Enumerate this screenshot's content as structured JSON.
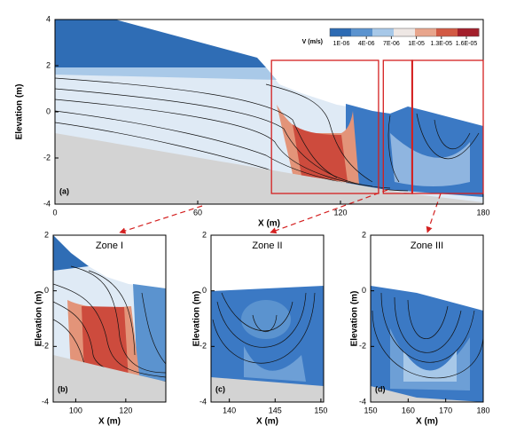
{
  "chart_data": [
    {
      "type": "contour",
      "panel_label": "(a)",
      "x_label": "X (m)",
      "y_label": "Elevation (m)",
      "xlim": [
        0,
        180
      ],
      "xticks": [
        0,
        60,
        120,
        180
      ],
      "ylim": [
        -4,
        4
      ],
      "yticks": [
        -4,
        -2,
        0,
        2,
        4
      ],
      "colorbar": {
        "label": "V (m/s)",
        "lim": [
          1e-06,
          1.6e-05
        ],
        "colors": [
          "#2d6bb3",
          "#5b93cf",
          "#a7c8e8",
          "#eee7e4",
          "#e8a58c",
          "#d25a44",
          "#a31f2b"
        ],
        "ticks": [
          {
            "value": 1e-06,
            "label": "1E-06"
          },
          {
            "value": 4e-06,
            "label": "4E-06"
          },
          {
            "value": 7e-06,
            "label": "7E-06"
          },
          {
            "value": 1e-05,
            "label": "1E-05"
          },
          {
            "value": 1.3e-05,
            "label": "1.3E-05"
          },
          {
            "value": 1.6e-05,
            "label": "1.6E-05"
          }
        ]
      }
    },
    {
      "type": "contour",
      "title": "Zone I",
      "panel_label": "(b)",
      "x_label": "X (m)",
      "y_label": "Elevation (m)",
      "xlim": [
        91,
        136
      ],
      "xticks": [
        100,
        120
      ],
      "ylim": [
        -4,
        2
      ],
      "yticks": [
        -4,
        -2,
        0,
        2
      ]
    },
    {
      "type": "contour",
      "title": "Zone II",
      "panel_label": "(c)",
      "x_label": "X (m)",
      "y_label": "Elevation (m)",
      "xlim": [
        138,
        150.3
      ],
      "xticks": [
        140,
        145,
        150
      ],
      "ylim": [
        -4,
        2
      ],
      "yticks": [
        -4,
        -2,
        0,
        2
      ]
    },
    {
      "type": "contour",
      "title": "Zone III",
      "panel_label": "(d)",
      "x_label": "X (m)",
      "y_label": "Elevation (m)",
      "xlim": [
        150,
        180
      ],
      "xticks": [
        150,
        160,
        170,
        180
      ],
      "ylim": [
        -4,
        2
      ],
      "yticks": [
        -4,
        -2,
        0,
        2
      ]
    }
  ]
}
